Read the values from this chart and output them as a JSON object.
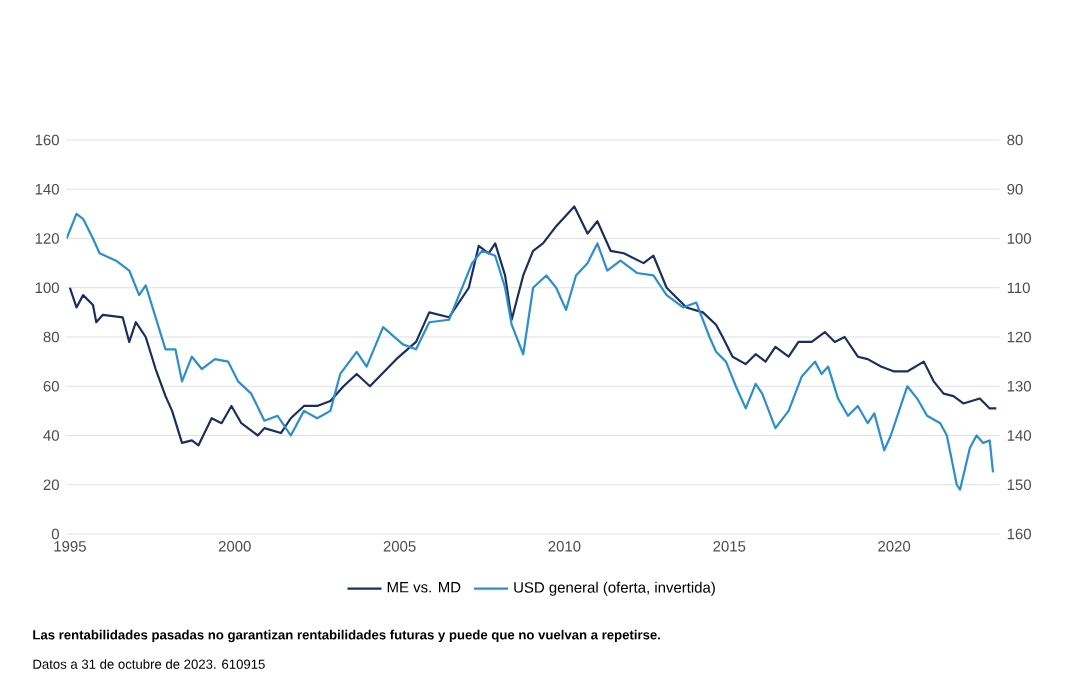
{
  "chart_data": {
    "type": "line",
    "annotations": [
      "Las rentabilidades pasadas no garantizan rentabilidades futuras y puede que no vuelvan a repetirse.",
      "Datos a 31 de octubre de 2023. 610915"
    ],
    "xlim": [
      1994.9,
      2023.2
    ],
    "xticks": [
      1995,
      2000,
      2005,
      2010,
      2015,
      2020
    ],
    "ylim": [
      0,
      160
    ],
    "yticks": [
      0,
      20,
      40,
      60,
      80,
      100,
      120,
      140,
      160
    ],
    "y2lim": [
      160,
      80
    ],
    "y2ticks": [
      80,
      90,
      100,
      110,
      120,
      130,
      140,
      150,
      160
    ],
    "grid": "y",
    "legend": "bottom",
    "line_style": "solid",
    "marker": "none",
    "series": [
      {
        "name": "ME vs. MD",
        "color": "#1b2f5e",
        "x": [
          1995.0,
          1995.2,
          1995.4,
          1995.7,
          1995.8,
          1996.0,
          1996.6,
          1996.8,
          1997.0,
          1997.3,
          1997.6,
          1997.9,
          1998.1,
          1998.4,
          1998.7,
          1998.9,
          1999.3,
          1999.6,
          1999.9,
          2000.2,
          2000.7,
          2000.9,
          2001.4,
          2001.7,
          2002.1,
          2002.5,
          2002.9,
          2003.3,
          2003.7,
          2004.1,
          2004.9,
          2005.5,
          2005.9,
          2006.5,
          2007.1,
          2007.4,
          2007.7,
          2007.9,
          2008.2,
          2008.4,
          2008.75,
          2009.05,
          2009.35,
          2009.75,
          2010.3,
          2010.7,
          2011.0,
          2011.4,
          2011.8,
          2012.4,
          2012.7,
          2013.1,
          2013.7,
          2014.2,
          2014.6,
          2014.8,
          2015.1,
          2015.5,
          2015.8,
          2016.1,
          2016.4,
          2016.8,
          2017.1,
          2017.5,
          2017.9,
          2018.2,
          2018.5,
          2018.9,
          2019.2,
          2019.6,
          2020.0,
          2020.4,
          2020.9,
          2021.2,
          2021.5,
          2021.8,
          2022.1,
          2022.6,
          2022.9,
          2023.1
        ],
        "values": [
          100,
          92,
          97,
          93,
          86,
          89,
          88,
          78,
          86,
          80,
          67,
          56,
          50,
          37,
          38,
          36,
          47,
          45,
          52,
          45,
          40,
          43,
          41,
          47,
          52,
          52,
          54,
          60,
          65,
          60,
          71,
          78,
          90,
          88,
          100,
          117,
          114,
          118,
          105,
          87,
          105,
          115,
          118,
          125,
          133,
          122,
          127,
          115,
          114,
          110,
          113,
          100,
          92,
          90,
          85,
          80,
          72,
          69,
          73,
          70,
          76,
          72,
          78,
          78,
          82,
          78,
          80,
          72,
          71,
          68,
          66,
          66,
          70,
          62,
          57,
          56,
          53,
          55,
          51,
          51
        ]
      },
      {
        "name": "USD general (oferta, invertida)",
        "color": "#2a8fcc",
        "axis": "y2",
        "x": [
          1994.9,
          1995.2,
          1995.4,
          1995.7,
          1995.9,
          1996.4,
          1996.8,
          1997.1,
          1997.3,
          1997.6,
          1997.9,
          1998.2,
          1998.4,
          1998.7,
          1999.0,
          1999.4,
          1999.8,
          2000.1,
          2000.5,
          2000.9,
          2001.3,
          2001.7,
          2002.1,
          2002.5,
          2002.9,
          2003.2,
          2003.7,
          2004.0,
          2004.5,
          2005.1,
          2005.5,
          2005.9,
          2006.5,
          2007.2,
          2007.5,
          2007.9,
          2008.2,
          2008.4,
          2008.75,
          2009.05,
          2009.45,
          2009.75,
          2010.05,
          2010.35,
          2010.7,
          2011.0,
          2011.3,
          2011.7,
          2012.2,
          2012.7,
          2013.1,
          2013.6,
          2014.0,
          2014.4,
          2014.6,
          2014.9,
          2015.2,
          2015.5,
          2015.8,
          2016.0,
          2016.4,
          2016.8,
          2017.2,
          2017.6,
          2017.8,
          2018.0,
          2018.3,
          2018.6,
          2018.9,
          2019.2,
          2019.4,
          2019.7,
          2019.9,
          2020.2,
          2020.4,
          2020.7,
          2021.0,
          2021.4,
          2021.6,
          2021.9,
          2022.0,
          2022.3,
          2022.5,
          2022.7,
          2022.9,
          2023.0
        ],
        "values": [
          100,
          95,
          96,
          100,
          103,
          104.5,
          106.5,
          111.5,
          109.5,
          116,
          122.5,
          122.5,
          129,
          124,
          126.5,
          124.5,
          125,
          129,
          131.5,
          137,
          136,
          140,
          135,
          136.5,
          135,
          127.5,
          123,
          126,
          118,
          121.5,
          122.5,
          117,
          116.5,
          105,
          102.5,
          103.5,
          110,
          117.5,
          123.5,
          110,
          107.5,
          110,
          114.5,
          107.5,
          105,
          101,
          106.5,
          104.5,
          107,
          107.5,
          111.5,
          114,
          113,
          120,
          123,
          125,
          130,
          134.5,
          129.5,
          131.5,
          138.5,
          135,
          128,
          125,
          127.5,
          126,
          132.5,
          136,
          134,
          137.5,
          135.5,
          143,
          140,
          134,
          130,
          132.5,
          136,
          137.5,
          140,
          150,
          151,
          142.5,
          140,
          141.5,
          141,
          147.5
        ]
      }
    ]
  }
}
